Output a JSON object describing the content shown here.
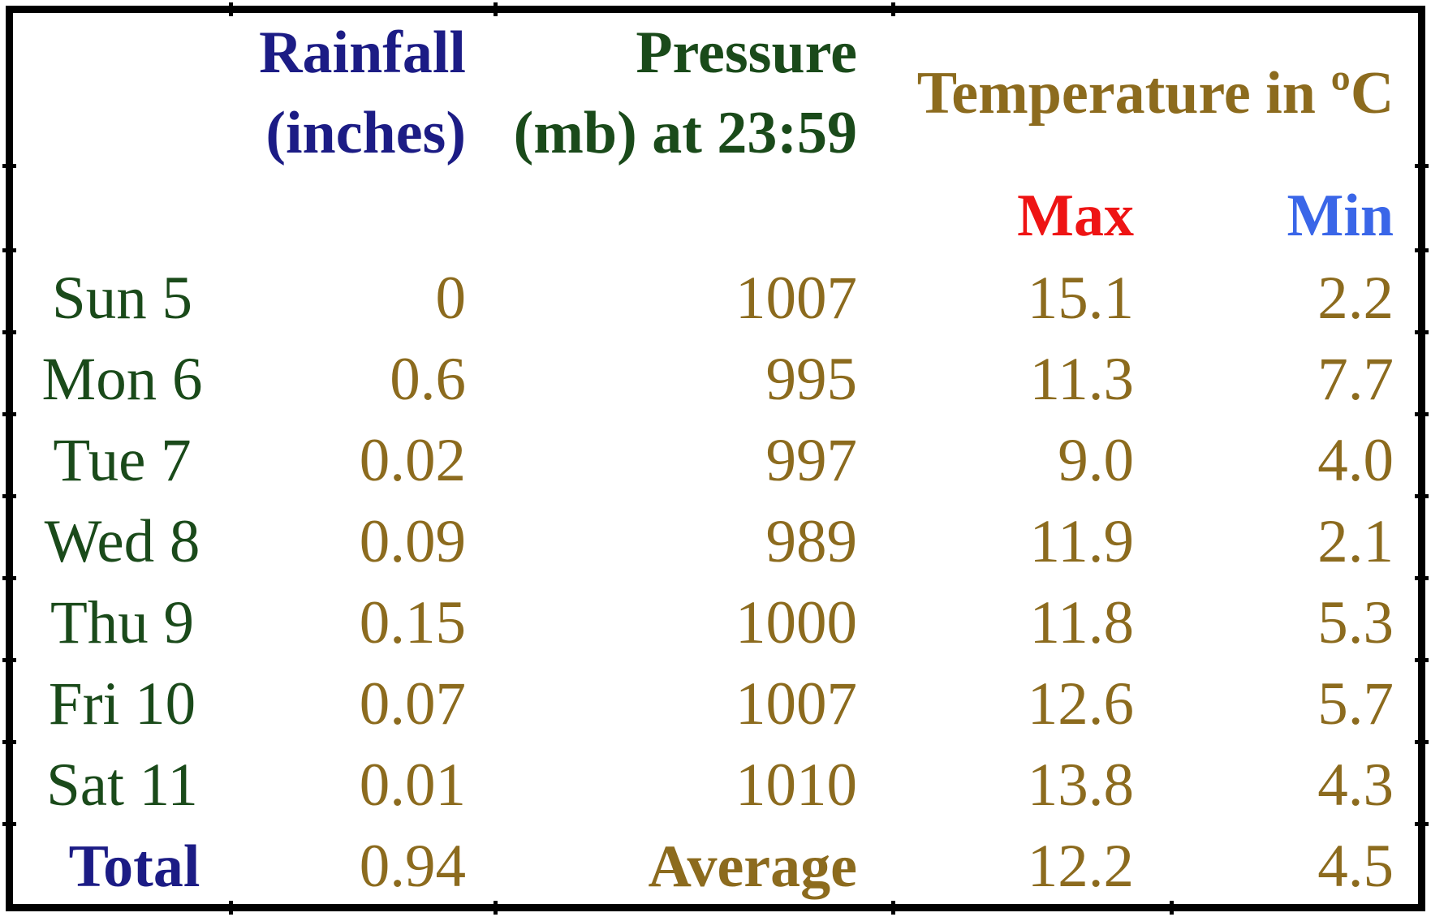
{
  "header": {
    "rainfall_line1": "Rainfall",
    "rainfall_line2": "(inches)",
    "pressure_line1": "Pressure",
    "pressure_line2": "(mb) at 23:59",
    "temperature": "Temperature in ºC",
    "max": "Max",
    "min": "Min"
  },
  "chart_data": {
    "type": "table",
    "columns": [
      "",
      "Rainfall (inches)",
      "Pressure (mb) at 23:59",
      "Temperature in ºC Max",
      "Temperature in ºC Min"
    ],
    "rows": [
      [
        "Sun 5",
        "0",
        "1007",
        "15.1",
        "2.2"
      ],
      [
        "Mon 6",
        "0.6",
        "995",
        "11.3",
        "7.7"
      ],
      [
        "Tue 7",
        "0.02",
        "997",
        "9.0",
        "4.0"
      ],
      [
        "Wed 8",
        "0.09",
        "989",
        "11.9",
        "2.1"
      ],
      [
        "Thu 9",
        "0.15",
        "1000",
        "11.8",
        "5.3"
      ],
      [
        "Fri 10",
        "0.07",
        "1007",
        "12.6",
        "5.7"
      ],
      [
        "Sat 11",
        "0.01",
        "1010",
        "13.8",
        "4.3"
      ]
    ],
    "summary_row": [
      "Total",
      "0.94",
      "Average",
      "12.2",
      "4.5"
    ]
  },
  "colors": {
    "rainfall_header": "#1c1c85",
    "pressure_header": "#1a4a1a",
    "temperature_header": "#8c6b1e",
    "max_header": "#ee1414",
    "min_header": "#3a66e8",
    "day_labels": "#1a4a1a",
    "data_values": "#8c6b1e",
    "total_label": "#1c1c85",
    "average_label": "#8c6b1e",
    "border": "#000000",
    "background": "#ffffff"
  }
}
